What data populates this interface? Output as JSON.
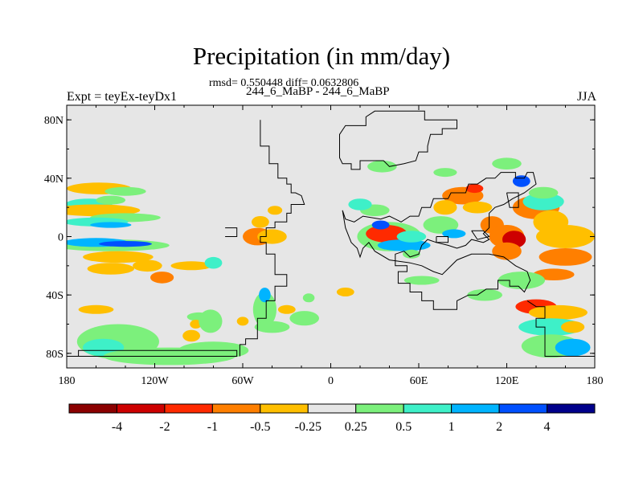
{
  "chart_data": {
    "type": "heatmap",
    "title": "Precipitation (in mm/day)",
    "subtitle_stats": "rmsd= 0.550448 diff= 0.0632806",
    "subtitle_case": "244_6_MaBP - 244_6_MaBP",
    "left_label": "Expt = teyEx-teyDx1",
    "right_label": "JJA",
    "x_ticks": [
      "180",
      "120W",
      "60W",
      "0",
      "60E",
      "120E",
      "180"
    ],
    "y_ticks": [
      "80N",
      "40N",
      "0",
      "40S",
      "80S"
    ],
    "lon_range": [
      -180,
      180
    ],
    "lat_range": [
      -90,
      90
    ],
    "colorbar_labels": [
      "-4",
      "-2",
      "-1",
      "-0.5",
      "-0.25",
      "0.25",
      "0.5",
      "1",
      "2",
      "4"
    ],
    "colorbar_colors": [
      "#8b0000",
      "#cd0000",
      "#ff2a00",
      "#ff7f00",
      "#ffbf00",
      "#e6e6e6",
      "#7cf07c",
      "#3ef0c8",
      "#00b4ff",
      "#0050ff",
      "#00008b"
    ],
    "background_color": "#e6e6e6"
  }
}
